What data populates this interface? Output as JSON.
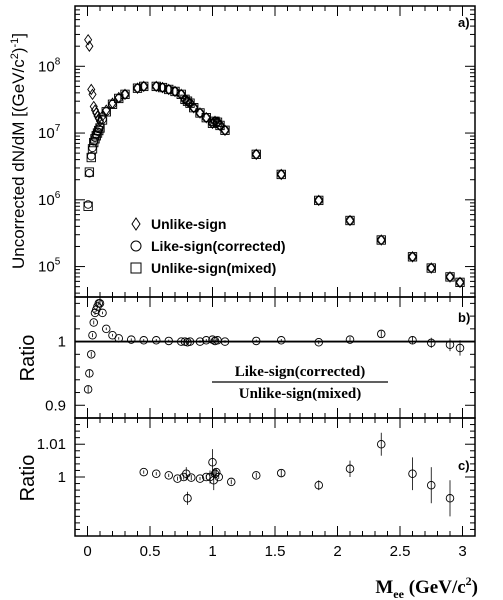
{
  "chart_data": [
    {
      "panel_label": "a)",
      "type": "scatter",
      "ylabel_main": "Uncorrected dN/dM",
      "ylabel_units": "[(GeV/c",
      "ylabel_units_tail": ")",
      "ylabel_sup2": "2",
      "ylabel_sup_neg1": "-1",
      "ylabel_close": "]",
      "y_scale": "log",
      "ylim": [
        35000,
        800000000
      ],
      "xlim": [
        -0.1,
        3.1
      ],
      "y_tick_labels": [
        {
          "value": 100000,
          "base": "10",
          "exp": "5"
        },
        {
          "value": 1000000,
          "base": "10",
          "exp": "6"
        },
        {
          "value": 10000000,
          "base": "10",
          "exp": "7"
        },
        {
          "value": 100000000,
          "base": "10",
          "exp": "8"
        }
      ],
      "legend_position": "lower-left",
      "series": [
        {
          "name": "Unlike-sign",
          "marker": "diamond",
          "x": [
            0.005,
            0.015,
            0.03,
            0.04,
            0.05,
            0.06,
            0.07,
            0.08,
            0.09,
            0.1,
            0.12,
            0.15,
            0.2,
            0.25,
            0.3,
            0.4,
            0.45,
            0.55,
            0.6,
            0.65,
            0.7,
            0.75,
            0.78,
            0.8,
            0.82,
            0.85,
            0.9,
            0.95,
            1.0,
            1.02,
            1.04,
            1.06,
            1.1,
            1.35,
            1.55,
            1.85,
            2.1,
            2.35,
            2.6,
            2.75,
            2.9,
            2.98
          ],
          "y": [
            250000000,
            200000000,
            45000000,
            38000000,
            25000000,
            22000000,
            20000000,
            18000000,
            16500000,
            15000000,
            18000000,
            22000000,
            28000000,
            34000000,
            38000000,
            47000000,
            50000000,
            50000000,
            48000000,
            45000000,
            42000000,
            38000000,
            32000000,
            30000000,
            28000000,
            24000000,
            20000000,
            17000000,
            14000000,
            15000000,
            14500000,
            13000000,
            11000000,
            4800000,
            2400000,
            980000,
            490000,
            250000,
            140000,
            95000,
            70000,
            58000
          ]
        },
        {
          "name": "Like-sign(corrected)",
          "marker": "circle",
          "x": [
            0.005,
            0.015,
            0.03,
            0.04,
            0.05,
            0.06,
            0.07,
            0.08,
            0.09,
            0.1,
            0.12,
            0.15,
            0.2,
            0.25,
            0.3,
            0.4,
            0.45,
            0.55,
            0.6,
            0.65,
            0.7,
            0.75,
            0.78,
            0.8,
            0.82,
            0.85,
            0.9,
            0.95,
            1.0,
            1.02,
            1.04,
            1.06,
            1.1,
            1.35,
            1.55,
            1.85,
            2.1,
            2.35,
            2.6,
            2.75,
            2.9,
            2.98
          ],
          "y": [
            850000,
            2500000,
            4500000,
            6000000,
            7500000,
            8500000,
            9500000,
            10500000,
            11500000,
            12500000,
            16000000,
            21000000,
            27000000,
            33000000,
            38000000,
            47000000,
            50000000,
            50000000,
            48000000,
            45000000,
            42000000,
            38000000,
            32000000,
            30000000,
            28000000,
            24000000,
            20000000,
            17000000,
            14000000,
            15000000,
            14500000,
            13000000,
            11000000,
            4800000,
            2400000,
            980000,
            490000,
            250000,
            140000,
            95000,
            70000,
            58000
          ]
        },
        {
          "name": "Unlike-sign(mixed)",
          "marker": "square",
          "x": [
            0.005,
            0.015,
            0.03,
            0.04,
            0.05,
            0.06,
            0.07,
            0.08,
            0.09,
            0.1,
            0.12,
            0.15,
            0.2,
            0.25,
            0.3,
            0.4,
            0.45,
            0.55,
            0.6,
            0.65,
            0.7,
            0.75,
            0.78,
            0.8,
            0.82,
            0.85,
            0.9,
            0.95,
            1.0,
            1.02,
            1.04,
            1.06,
            1.1,
            1.35,
            1.55,
            1.85,
            2.1,
            2.35,
            2.6,
            2.75,
            2.9,
            2.98
          ],
          "y": [
            800000,
            2600000,
            4300000,
            5800000,
            7200000,
            8200000,
            9100000,
            10000000,
            10900000,
            11900000,
            15700000,
            20800000,
            27000000,
            33000000,
            38000000,
            47000000,
            50000000,
            50000000,
            48000000,
            45000000,
            42000000,
            38000000,
            32000000,
            30000000,
            28000000,
            24000000,
            20000000,
            17000000,
            14000000,
            15000000,
            14500000,
            13000000,
            11000000,
            4800000,
            2400000,
            980000,
            490000,
            250000,
            140000,
            95000,
            70000,
            58000
          ]
        }
      ]
    },
    {
      "panel_label": "b)",
      "type": "scatter",
      "ylabel": "Ratio",
      "ylim": [
        0.88,
        1.07
      ],
      "xlim": [
        -0.1,
        3.1
      ],
      "y_ticks": [
        0.9,
        1.0
      ],
      "y_tick_labels": [
        "0.9",
        "1"
      ],
      "reference_line": 1.0,
      "annotation_numerator": "Like-sign(corrected)",
      "annotation_denominator": "Unlike-sign(mixed)",
      "series": [
        {
          "name": "",
          "marker": "circle",
          "x": [
            0.005,
            0.015,
            0.03,
            0.04,
            0.05,
            0.06,
            0.07,
            0.08,
            0.09,
            0.1,
            0.12,
            0.15,
            0.2,
            0.25,
            0.35,
            0.45,
            0.55,
            0.65,
            0.75,
            0.78,
            0.8,
            0.82,
            0.9,
            0.95,
            1.0,
            1.02,
            1.04,
            1.1,
            1.35,
            1.55,
            1.85,
            2.1,
            2.35,
            2.6,
            2.75,
            2.9,
            2.98
          ],
          "y": [
            0.925,
            0.95,
            0.98,
            1.01,
            1.03,
            1.045,
            1.05,
            1.055,
            1.06,
            1.06,
            1.045,
            1.02,
            1.01,
            1.005,
            1.003,
            1.002,
            1.002,
            1.001,
            1.0,
            1.0,
            0.999,
            1.0,
            1.0,
            1.002,
            1.003,
            1.001,
            1.002,
            1.0,
            1.001,
            1.002,
            0.999,
            1.003,
            1.012,
            1.002,
            0.998,
            0.995,
            0.99
          ],
          "yerr": [
            0.006,
            0.005,
            0.004,
            0.003,
            0.003,
            0.003,
            0.003,
            0.003,
            0.003,
            0.003,
            0.002,
            0.002,
            0.002,
            0.002,
            0.002,
            0.002,
            0.002,
            0.002,
            0.002,
            0.002,
            0.002,
            0.002,
            0.002,
            0.002,
            0.002,
            0.002,
            0.002,
            0.002,
            0.002,
            0.002,
            0.003,
            0.004,
            0.005,
            0.006,
            0.008,
            0.01,
            0.012
          ]
        }
      ]
    },
    {
      "panel_label": "c)",
      "type": "scatter",
      "ylabel": "Ratio",
      "ylim": [
        0.982,
        1.018
      ],
      "xlim": [
        -0.1,
        3.1
      ],
      "y_ticks": [
        1.0,
        1.01
      ],
      "y_tick_labels": [
        "1",
        "1.01"
      ],
      "series": [
        {
          "name": "",
          "marker": "circle",
          "x": [
            0.45,
            0.55,
            0.65,
            0.72,
            0.77,
            0.79,
            0.8,
            0.83,
            0.9,
            0.95,
            0.98,
            1.0,
            1.01,
            1.02,
            1.03,
            1.05,
            1.15,
            1.35,
            1.55,
            1.85,
            2.1,
            2.35,
            2.6,
            2.75,
            2.9
          ],
          "y": [
            1.0015,
            1.001,
            1.0005,
            0.9995,
            1.0,
            1.001,
            0.9935,
            0.9998,
            0.9995,
            1.0,
            1.0,
            1.0045,
            0.999,
            1.001,
            1.0015,
            1.0,
            0.9985,
            1.0005,
            1.0012,
            0.9975,
            1.0025,
            1.01,
            1.001,
            0.9975,
            0.9935
          ],
          "yerr": [
            0.0005,
            0.0005,
            0.0005,
            0.0006,
            0.0008,
            0.002,
            0.002,
            0.0008,
            0.0005,
            0.0007,
            0.002,
            0.004,
            0.003,
            0.0015,
            0.001,
            0.0006,
            0.0007,
            0.0008,
            0.001,
            0.0015,
            0.0025,
            0.0035,
            0.005,
            0.0055,
            0.0055
          ]
        }
      ]
    }
  ],
  "xaxis": {
    "tick_values": [
      0,
      0.5,
      1,
      1.5,
      2,
      2.5,
      3
    ],
    "tick_labels": [
      "0",
      "0.5",
      "1",
      "1.5",
      "2",
      "2.5",
      "3"
    ],
    "label_main": "M",
    "label_sub": "ee",
    "label_units": " (GeV/c",
    "label_sup": "2",
    "label_close": ")"
  }
}
